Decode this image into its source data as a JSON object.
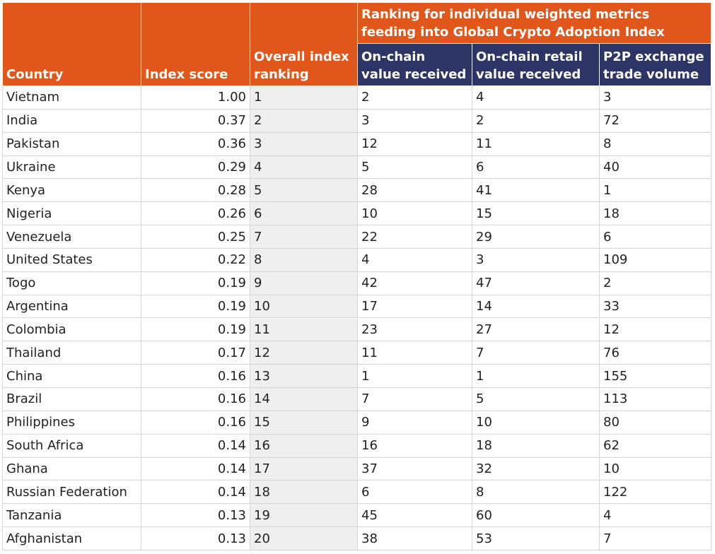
{
  "table": {
    "group_header": "Ranking for individual weighted metrics feeding into Global Crypto Adoption Index",
    "columns": [
      "Country",
      "Index score",
      "Overall index ranking",
      "On-chain value received",
      "On-chain retail value received",
      "P2P exchange trade volume"
    ],
    "rows": [
      [
        "Vietnam",
        "1.00",
        "1",
        "2",
        "4",
        "3"
      ],
      [
        "India",
        "0.37",
        "2",
        "3",
        "2",
        "72"
      ],
      [
        "Pakistan",
        "0.36",
        "3",
        "12",
        "11",
        "8"
      ],
      [
        "Ukraine",
        "0.29",
        "4",
        "5",
        "6",
        "40"
      ],
      [
        "Kenya",
        "0.28",
        "5",
        "28",
        "41",
        "1"
      ],
      [
        "Nigeria",
        "0.26",
        "6",
        "10",
        "15",
        "18"
      ],
      [
        "Venezuela",
        "0.25",
        "7",
        "22",
        "29",
        "6"
      ],
      [
        "United States",
        "0.22",
        "8",
        "4",
        "3",
        "109"
      ],
      [
        "Togo",
        "0.19",
        "9",
        "42",
        "47",
        "2"
      ],
      [
        "Argentina",
        "0.19",
        "10",
        "17",
        "14",
        "33"
      ],
      [
        "Colombia",
        "0.19",
        "11",
        "23",
        "27",
        "12"
      ],
      [
        "Thailand",
        "0.17",
        "12",
        "11",
        "7",
        "76"
      ],
      [
        "China",
        "0.16",
        "13",
        "1",
        "1",
        "155"
      ],
      [
        "Brazil",
        "0.16",
        "14",
        "7",
        "5",
        "113"
      ],
      [
        "Philippines",
        "0.16",
        "15",
        "9",
        "10",
        "80"
      ],
      [
        "South Africa",
        "0.14",
        "16",
        "16",
        "18",
        "62"
      ],
      [
        "Ghana",
        "0.14",
        "17",
        "37",
        "32",
        "10"
      ],
      [
        "Russian Federation",
        "0.14",
        "18",
        "6",
        "8",
        "122"
      ],
      [
        "Tanzania",
        "0.13",
        "19",
        "45",
        "60",
        "4"
      ],
      [
        "Afghanistan",
        "0.13",
        "20",
        "38",
        "53",
        "7"
      ]
    ]
  }
}
